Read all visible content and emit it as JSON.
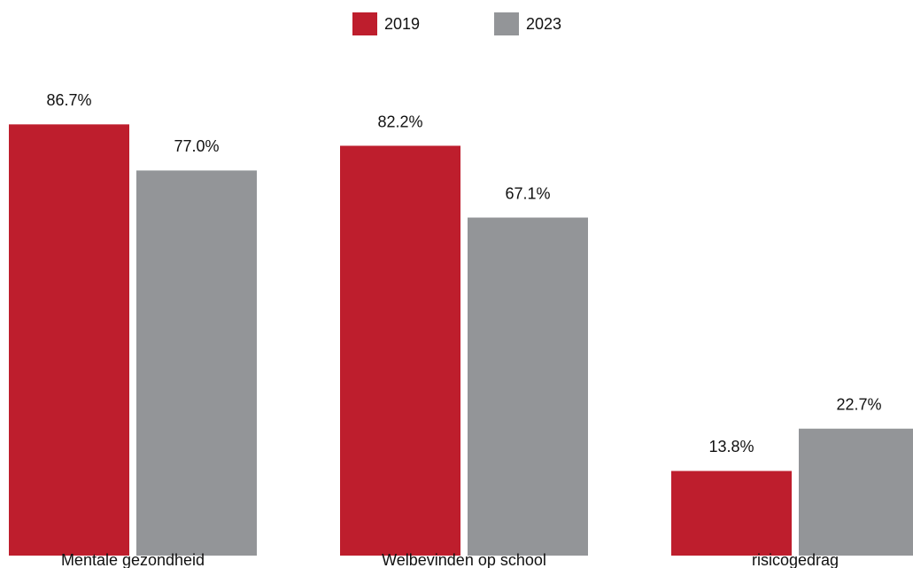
{
  "chart_data": {
    "type": "bar",
    "categories": [
      "Mentale gezondheid",
      "Welbevinden op school",
      "risicogedrag"
    ],
    "series": [
      {
        "name": "2019",
        "color": "#be1e2d",
        "values": [
          86.7,
          82.2,
          13.8
        ],
        "value_labels": [
          "86.7%",
          "82.2%",
          "13.8%"
        ]
      },
      {
        "name": "2023",
        "color": "#939598",
        "values": [
          77.0,
          67.1,
          22.7
        ],
        "value_labels": [
          "77.0%",
          "67.1%",
          "22.7%"
        ]
      }
    ],
    "ylim": [
      -4,
      100
    ],
    "legend": "top"
  }
}
